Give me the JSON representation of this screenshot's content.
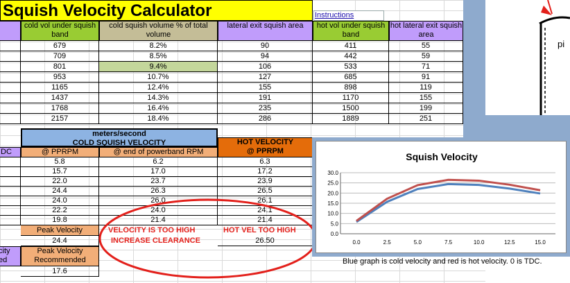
{
  "title": "Squish Velocity Calculator",
  "instructions_link": "Instructions",
  "top_headers": {
    "cold_vol": "cold vol under squish band",
    "cold_pct": "cold squish volume % of total volume",
    "lat_exit": "lateral exit squish area",
    "hot_vol": "hot vol under squish band",
    "hot_lat": "hot lateral exit squish area"
  },
  "top_rows": [
    [
      "679",
      "8.2%",
      "90",
      "411",
      "55"
    ],
    [
      "709",
      "8.5%",
      "94",
      "442",
      "59"
    ],
    [
      "801",
      "9.4%",
      "106",
      "533",
      "71"
    ],
    [
      "953",
      "10.7%",
      "127",
      "685",
      "91"
    ],
    [
      "1165",
      "12.4%",
      "155",
      "898",
      "119"
    ],
    [
      "1437",
      "14.3%",
      "191",
      "1170",
      "155"
    ],
    [
      "1768",
      "16.4%",
      "235",
      "1500",
      "199"
    ],
    [
      "2157",
      "18.4%",
      "286",
      "1889",
      "251"
    ]
  ],
  "units": "meters/second",
  "cold_title": "COLD SQUISH VELOCITY",
  "hot_title": "HOT VELOCITY @ PPRPM",
  "left_clip": "DC",
  "col_pprpm": "@ PPRPM",
  "col_end": "@ end of powerband RPM",
  "vel_rows": [
    [
      "5.8",
      "6.2",
      "6.3"
    ],
    [
      "15.7",
      "17.0",
      "17.2"
    ],
    [
      "22.0",
      "23.7",
      "23.9"
    ],
    [
      "24.4",
      "26.3",
      "26.5"
    ],
    [
      "24.0",
      "26.0",
      "26.1"
    ],
    [
      "22.2",
      "24.0",
      "24.1"
    ],
    [
      "19.8",
      "21.4",
      "21.4"
    ]
  ],
  "peak_label": "Peak Velocity",
  "peak_value": "24.4",
  "warn1_a": "VELOCITY IS TOO HIGH",
  "warn1_b": "INCREASE CLEARANCE",
  "warn2": "HOT VEL TOO HIGH",
  "hot_peak": "26.50",
  "left_clip2a": "city",
  "left_clip2b": "ed",
  "rec_label": "Peak Velocity Recommended",
  "rec_value": "17.6",
  "piston_label": "pi",
  "footer_note": "Blue graph is cold velocity and red is hot velocity. 0 is TDC.",
  "chart_data": {
    "type": "line",
    "title": "Squish Velocity",
    "x": [
      0,
      2.5,
      5,
      7.5,
      10,
      12.5,
      15
    ],
    "x_ticks": [
      "0.0",
      "2.5",
      "5.0",
      "7.5",
      "10.0",
      "12.5",
      "15.0"
    ],
    "y_ticks": [
      "0.0",
      "5.0",
      "10.0",
      "15.0",
      "20.0",
      "25.0",
      "30.0"
    ],
    "ylim": [
      0,
      30
    ],
    "grid": true,
    "series": [
      {
        "color": "#4f81bd",
        "values": [
          5.8,
          15.7,
          22.0,
          24.4,
          24.0,
          22.2,
          19.8
        ]
      },
      {
        "color": "#c0504d",
        "values": [
          6.3,
          17.2,
          23.9,
          26.5,
          26.1,
          24.1,
          21.4
        ]
      }
    ]
  },
  "colors": {
    "title_bg": "#ffff00",
    "purple": "#c09cfb",
    "green": "#99cc33",
    "tan": "#c4bd97",
    "orange": "#f2ae78",
    "blue_hdr": "#8db3e2",
    "hot_orange": "#e46c0a",
    "frame": "#8eaacd",
    "warn": "#e3201b",
    "hilite": "#c4d79b"
  }
}
